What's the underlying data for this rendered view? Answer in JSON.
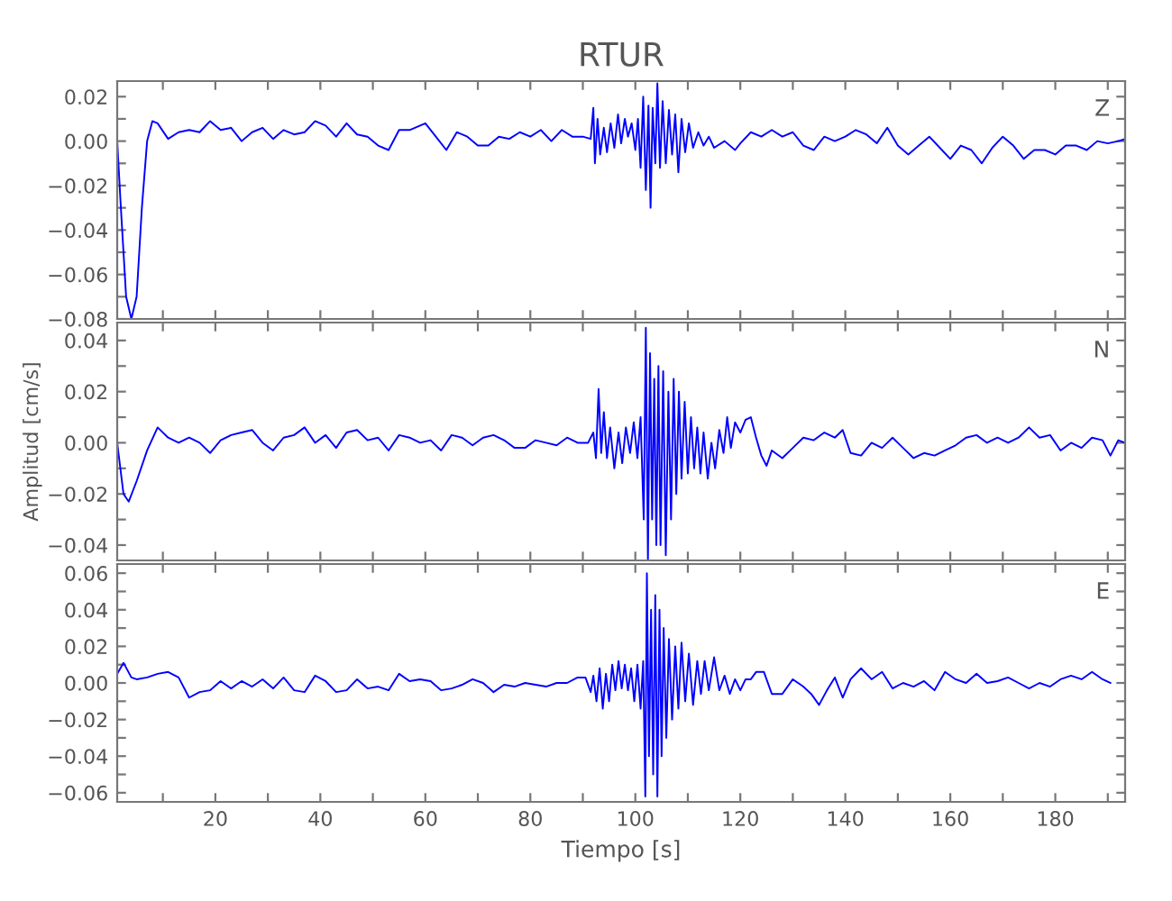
{
  "chart_data": [
    {
      "type": "line",
      "title": "RTUR",
      "annotations": [
        "Z"
      ],
      "tick_labels": "y",
      "grid": false,
      "xlim": [
        1.3,
        193.3
      ],
      "xticks": [
        {
          "value": 10,
          "label": null
        },
        {
          "value": 20,
          "label": null
        },
        {
          "value": 30,
          "label": null
        },
        {
          "value": 40,
          "label": null
        },
        {
          "value": 50,
          "label": null
        },
        {
          "value": 60,
          "label": null
        },
        {
          "value": 70,
          "label": null
        },
        {
          "value": 80,
          "label": null
        },
        {
          "value": 90,
          "label": null
        },
        {
          "value": 100,
          "label": null
        },
        {
          "value": 110,
          "label": null
        },
        {
          "value": 120,
          "label": null
        },
        {
          "value": 130,
          "label": null
        },
        {
          "value": 140,
          "label": null
        },
        {
          "value": 150,
          "label": null
        },
        {
          "value": 160,
          "label": null
        },
        {
          "value": 170,
          "label": null
        },
        {
          "value": 180,
          "label": null
        },
        {
          "value": 190,
          "label": null
        }
      ],
      "ylim": [
        -0.08,
        0.027
      ],
      "yticks": [
        {
          "value": -0.08,
          "label": "−0.08"
        },
        {
          "value": -0.07,
          "label": null
        },
        {
          "value": -0.06,
          "label": "−0.06"
        },
        {
          "value": -0.05,
          "label": null
        },
        {
          "value": -0.04,
          "label": "−0.04"
        },
        {
          "value": -0.03,
          "label": null
        },
        {
          "value": -0.02,
          "label": "−0.02"
        },
        {
          "value": -0.01,
          "label": null
        },
        {
          "value": 0.0,
          "label": "0.00"
        },
        {
          "value": 0.01,
          "label": null
        },
        {
          "value": 0.02,
          "label": "0.02"
        }
      ],
      "series": [
        {
          "color": "#0000ff",
          "x": [
            1.3,
            2,
            3,
            4,
            5,
            6,
            7,
            8,
            9,
            11,
            13,
            15,
            17,
            19,
            21,
            23,
            25,
            27,
            29,
            31,
            33,
            35,
            37,
            39,
            41,
            43,
            45,
            47,
            49,
            51,
            53,
            55,
            57,
            60,
            62,
            64,
            66,
            68,
            70,
            72,
            74,
            76,
            78,
            80,
            82,
            84,
            86,
            88,
            90,
            91.5,
            92,
            92.3,
            92.8,
            93.3,
            94,
            94.6,
            95.3,
            96,
            96.7,
            97.3,
            98,
            98.6,
            99.3,
            100,
            100.5,
            101,
            101.5,
            102,
            102.5,
            102.9,
            103.3,
            103.8,
            104.2,
            104.7,
            105.2,
            105.8,
            106.4,
            107,
            107.6,
            108.2,
            108.8,
            109.5,
            110.2,
            111,
            112,
            113,
            114,
            115,
            117,
            119,
            120,
            122,
            124,
            126,
            128,
            130,
            132,
            134,
            136,
            138,
            140,
            142,
            144,
            146,
            148,
            150,
            152,
            154,
            156,
            158,
            160,
            162,
            164,
            166,
            168,
            170,
            172,
            174,
            176,
            178,
            180,
            182,
            184,
            186,
            188,
            190,
            192,
            193.3
          ],
          "values": [
            0,
            -0.03,
            -0.07,
            -0.08,
            -0.07,
            -0.03,
            0.0,
            0.009,
            0.008,
            0.001,
            0.004,
            0.005,
            0.004,
            0.009,
            0.005,
            0.006,
            0.0,
            0.004,
            0.006,
            0.001,
            0.005,
            0.003,
            0.004,
            0.009,
            0.007,
            0.002,
            0.008,
            0.003,
            0.002,
            -0.002,
            -0.004,
            0.005,
            0.005,
            0.008,
            0.002,
            -0.004,
            0.004,
            0.002,
            -0.002,
            -0.002,
            0.002,
            0.001,
            0.004,
            0.002,
            0.005,
            0.0,
            0.005,
            0.002,
            0.002,
            0.001,
            0.015,
            -0.01,
            0.01,
            -0.006,
            0.006,
            -0.005,
            0.008,
            -0.003,
            0.012,
            -0.001,
            0.01,
            0.002,
            0.008,
            -0.004,
            0.01,
            -0.012,
            0.02,
            -0.022,
            0.016,
            -0.03,
            0.015,
            -0.01,
            0.026,
            -0.012,
            0.018,
            -0.01,
            0.014,
            -0.006,
            0.012,
            -0.014,
            0.01,
            -0.005,
            0.008,
            -0.003,
            0.004,
            -0.002,
            0.002,
            -0.003,
            0.0,
            -0.004,
            -0.001,
            0.004,
            0.002,
            0.005,
            0.002,
            0.004,
            -0.002,
            -0.004,
            0.002,
            0.0,
            0.002,
            0.005,
            0.003,
            -0.001,
            0.006,
            -0.002,
            -0.006,
            -0.002,
            0.002,
            -0.003,
            -0.008,
            -0.002,
            -0.004,
            -0.01,
            -0.003,
            0.002,
            -0.002,
            -0.008,
            -0.004,
            -0.004,
            -0.006,
            -0.002,
            -0.002,
            -0.004,
            0.0,
            -0.001,
            0.0,
            0.001
          ]
        }
      ]
    },
    {
      "type": "line",
      "ylabel": "Amplitud [cm/s]",
      "annotations": [
        "N"
      ],
      "tick_labels": "y",
      "grid": false,
      "xlim": [
        1.3,
        193.3
      ],
      "xticks": [
        {
          "value": 10,
          "label": null
        },
        {
          "value": 20,
          "label": null
        },
        {
          "value": 30,
          "label": null
        },
        {
          "value": 40,
          "label": null
        },
        {
          "value": 50,
          "label": null
        },
        {
          "value": 60,
          "label": null
        },
        {
          "value": 70,
          "label": null
        },
        {
          "value": 80,
          "label": null
        },
        {
          "value": 90,
          "label": null
        },
        {
          "value": 100,
          "label": null
        },
        {
          "value": 110,
          "label": null
        },
        {
          "value": 120,
          "label": null
        },
        {
          "value": 130,
          "label": null
        },
        {
          "value": 140,
          "label": null
        },
        {
          "value": 150,
          "label": null
        },
        {
          "value": 160,
          "label": null
        },
        {
          "value": 170,
          "label": null
        },
        {
          "value": 180,
          "label": null
        },
        {
          "value": 190,
          "label": null
        }
      ],
      "ylim": [
        -0.046,
        0.047
      ],
      "yticks": [
        {
          "value": -0.04,
          "label": "−0.04"
        },
        {
          "value": -0.03,
          "label": null
        },
        {
          "value": -0.02,
          "label": "−0.02"
        },
        {
          "value": -0.01,
          "label": null
        },
        {
          "value": 0.0,
          "label": "0.00"
        },
        {
          "value": 0.01,
          "label": null
        },
        {
          "value": 0.02,
          "label": "0.02"
        },
        {
          "value": 0.03,
          "label": null
        },
        {
          "value": 0.04,
          "label": "0.04"
        }
      ],
      "series": [
        {
          "color": "#0000ff",
          "x": [
            1.3,
            2.5,
            3.5,
            5,
            7,
            9,
            11,
            13,
            15,
            17,
            19,
            21,
            23,
            25,
            27,
            29,
            31,
            33,
            35,
            37,
            39,
            41,
            43,
            45,
            47,
            49,
            51,
            53,
            55,
            57,
            59,
            61,
            63,
            65,
            67,
            69,
            71,
            73,
            75,
            77,
            79,
            81,
            83,
            85,
            87,
            89,
            91,
            92,
            92.5,
            93,
            93.5,
            94,
            94.6,
            95.2,
            96,
            96.8,
            97.5,
            98.2,
            99,
            99.7,
            100.4,
            101,
            101.6,
            102,
            102.4,
            102.8,
            103.2,
            103.6,
            104,
            104.4,
            104.8,
            105.3,
            105.8,
            106.3,
            106.8,
            107.3,
            107.8,
            108.3,
            108.8,
            109.4,
            110,
            110.6,
            111.2,
            111.8,
            112.4,
            113,
            113.8,
            114.5,
            115.2,
            116,
            116.8,
            117.5,
            118.2,
            119,
            120,
            121,
            122,
            123,
            124,
            125,
            126,
            128,
            130,
            132,
            134,
            136,
            138,
            139.5,
            141,
            143,
            145,
            147,
            149,
            151,
            153,
            155,
            157,
            159,
            161,
            163,
            165,
            167,
            169,
            171,
            173,
            175,
            177,
            179,
            181,
            183,
            185,
            187,
            189,
            190.5,
            192,
            193.3
          ],
          "values": [
            0,
            -0.02,
            -0.023,
            -0.015,
            -0.003,
            0.006,
            0.002,
            0.0,
            0.002,
            0.0,
            -0.004,
            0.001,
            0.003,
            0.004,
            0.005,
            0.0,
            -0.003,
            0.002,
            0.003,
            0.006,
            0.0,
            0.003,
            -0.002,
            0.004,
            0.005,
            0.001,
            0.002,
            -0.003,
            0.003,
            0.002,
            0.0,
            0.001,
            -0.003,
            0.003,
            0.002,
            -0.001,
            0.002,
            0.003,
            0.001,
            -0.002,
            -0.002,
            0.001,
            0.0,
            -0.001,
            0.002,
            0.0,
            0.0,
            0.004,
            -0.006,
            0.021,
            -0.004,
            0.012,
            -0.006,
            0.006,
            -0.01,
            0.004,
            -0.008,
            0.006,
            -0.004,
            0.008,
            -0.006,
            0.01,
            -0.03,
            0.045,
            -0.046,
            0.035,
            -0.03,
            0.025,
            -0.04,
            0.03,
            -0.04,
            0.028,
            -0.044,
            0.02,
            -0.03,
            0.025,
            -0.02,
            0.02,
            -0.014,
            0.016,
            -0.012,
            0.01,
            -0.01,
            0.006,
            -0.012,
            0.004,
            -0.014,
            0.0,
            -0.01,
            0.005,
            -0.004,
            0.01,
            -0.002,
            0.008,
            0.004,
            0.009,
            0.01,
            0.002,
            -0.005,
            -0.009,
            -0.003,
            -0.006,
            -0.002,
            0.002,
            0.001,
            0.004,
            0.002,
            0.005,
            -0.004,
            -0.005,
            0.0,
            -0.002,
            0.002,
            -0.002,
            -0.006,
            -0.004,
            -0.005,
            -0.003,
            -0.001,
            0.002,
            0.003,
            0.0,
            0.002,
            0.0,
            0.002,
            0.006,
            0.002,
            0.003,
            -0.003,
            0.0,
            -0.002,
            0.002,
            0.001,
            -0.005,
            0.001,
            0.0
          ]
        }
      ]
    },
    {
      "type": "line",
      "xlabel": "Tiempo [s]",
      "annotations": [
        "E"
      ],
      "grid": false,
      "xlim": [
        1.3,
        193.3
      ],
      "xticks": [
        {
          "value": 10,
          "label": null
        },
        20,
        {
          "value": 30,
          "label": null
        },
        40,
        {
          "value": 50,
          "label": null
        },
        60,
        {
          "value": 70,
          "label": null
        },
        80,
        {
          "value": 90,
          "label": null
        },
        100,
        {
          "value": 110,
          "label": null
        },
        120,
        {
          "value": 130,
          "label": null
        },
        140,
        {
          "value": 150,
          "label": null
        },
        160,
        {
          "value": 170,
          "label": null
        },
        180,
        {
          "value": 190,
          "label": null
        }
      ],
      "ylim": [
        -0.065,
        0.065
      ],
      "yticks": [
        {
          "value": -0.06,
          "label": "−0.06"
        },
        {
          "value": -0.05,
          "label": null
        },
        {
          "value": -0.04,
          "label": "−0.04"
        },
        {
          "value": -0.03,
          "label": null
        },
        {
          "value": -0.02,
          "label": "−0.02"
        },
        {
          "value": -0.01,
          "label": null
        },
        {
          "value": 0.0,
          "label": "0.00"
        },
        {
          "value": 0.01,
          "label": null
        },
        {
          "value": 0.02,
          "label": "0.02"
        },
        {
          "value": 0.03,
          "label": null
        },
        {
          "value": 0.04,
          "label": "0.04"
        },
        {
          "value": 0.05,
          "label": null
        },
        {
          "value": 0.06,
          "label": "0.06"
        }
      ],
      "series": [
        {
          "color": "#0000ff",
          "x": [
            1.3,
            2.5,
            4,
            5,
            7,
            9,
            11,
            13,
            15,
            17,
            19,
            21,
            23,
            25,
            27,
            29,
            31,
            33,
            35,
            37,
            39,
            41,
            43,
            45,
            47,
            49,
            51,
            53,
            55,
            57,
            59,
            61,
            63,
            65,
            67,
            69,
            71,
            73,
            75,
            77,
            79,
            81,
            83,
            85,
            87,
            89,
            90.5,
            91.5,
            92,
            92.6,
            93.2,
            93.8,
            94.4,
            95,
            95.6,
            96.2,
            96.8,
            97.4,
            98,
            98.6,
            99.2,
            99.8,
            100.4,
            101,
            101.5,
            101.9,
            102.2,
            102.6,
            103,
            103.4,
            103.8,
            104.2,
            104.6,
            105,
            105.4,
            105.9,
            106.4,
            107,
            107.6,
            108.2,
            108.8,
            109.5,
            110.2,
            111,
            111.8,
            112.5,
            113.2,
            114,
            115,
            116,
            117,
            118,
            119,
            120,
            121,
            122,
            123,
            124.5,
            126,
            128,
            130,
            132,
            133.5,
            135,
            136.5,
            138,
            139.5,
            141,
            143,
            145,
            147,
            149,
            151,
            153,
            155,
            157,
            159,
            161,
            163,
            165,
            167,
            169,
            171,
            173,
            175,
            177,
            179,
            181,
            183,
            185,
            187,
            189,
            190.5
          ],
          "values": [
            0.005,
            0.011,
            0.003,
            0.002,
            0.003,
            0.005,
            0.006,
            0.003,
            -0.008,
            -0.005,
            -0.004,
            0.001,
            -0.003,
            0.001,
            -0.002,
            0.002,
            -0.003,
            0.003,
            -0.004,
            -0.005,
            0.004,
            0.001,
            -0.005,
            -0.004,
            0.002,
            -0.003,
            -0.002,
            -0.004,
            0.005,
            0.001,
            0.002,
            0.001,
            -0.004,
            -0.003,
            -0.001,
            0.002,
            0.0,
            -0.005,
            -0.001,
            -0.002,
            0.0,
            -0.001,
            -0.002,
            0.0,
            0.0,
            0.003,
            0.003,
            -0.005,
            0.004,
            -0.01,
            0.008,
            -0.014,
            0.005,
            -0.01,
            0.01,
            -0.004,
            0.012,
            -0.003,
            0.01,
            -0.004,
            0.008,
            -0.01,
            0.01,
            -0.014,
            0.012,
            -0.062,
            0.06,
            -0.04,
            0.04,
            -0.05,
            0.048,
            -0.062,
            0.04,
            -0.04,
            0.03,
            -0.03,
            0.024,
            -0.02,
            0.02,
            -0.014,
            0.022,
            -0.01,
            0.016,
            -0.012,
            0.012,
            -0.006,
            0.012,
            -0.004,
            0.014,
            -0.004,
            0.004,
            -0.006,
            0.002,
            -0.004,
            0.002,
            0.002,
            0.006,
            0.006,
            -0.006,
            -0.006,
            0.002,
            -0.002,
            -0.006,
            -0.012,
            -0.004,
            0.003,
            -0.008,
            0.002,
            0.008,
            0.002,
            0.006,
            -0.003,
            0.0,
            -0.002,
            0.001,
            -0.004,
            0.006,
            0.002,
            0.0,
            0.005,
            0.0,
            0.001,
            0.003,
            0.0,
            -0.003,
            0.0,
            -0.002,
            0.002,
            0.004,
            0.002,
            0.006,
            0.002,
            0.0
          ]
        }
      ]
    }
  ]
}
